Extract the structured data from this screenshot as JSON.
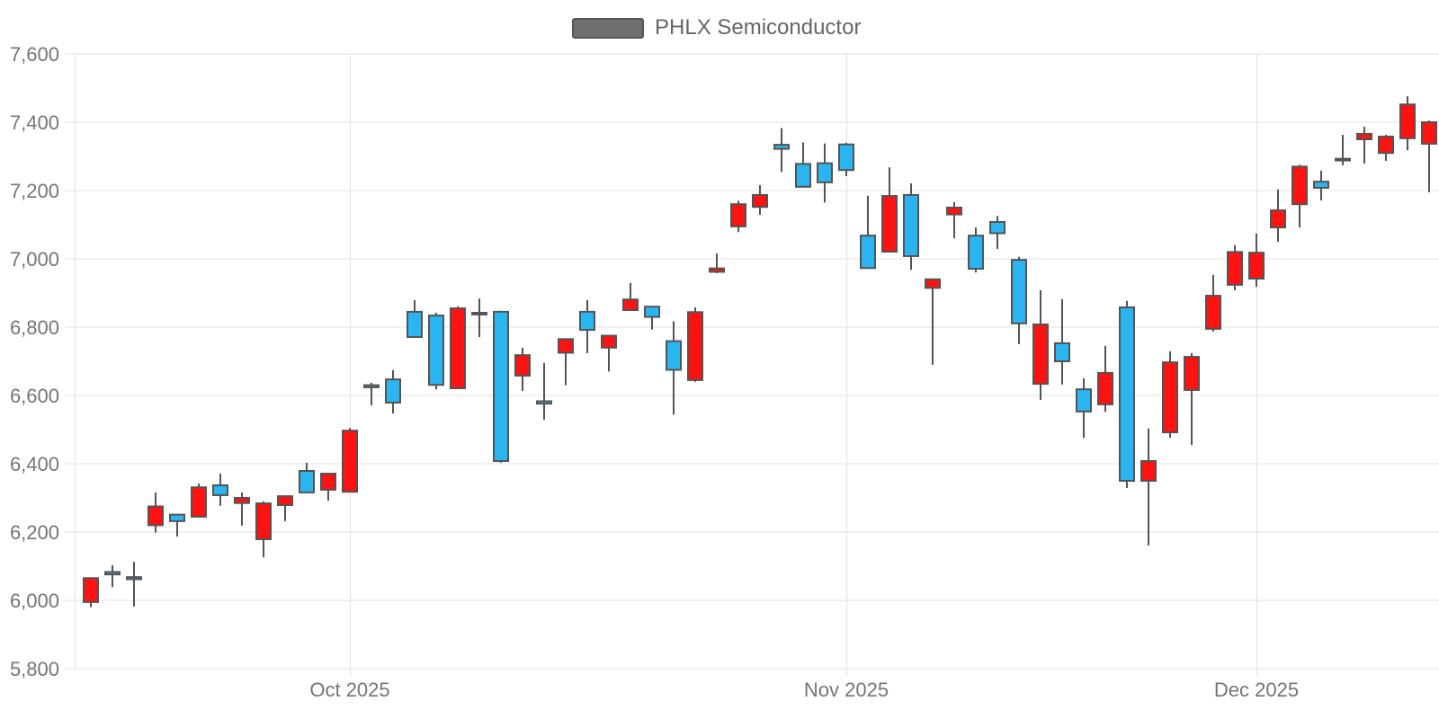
{
  "legend": {
    "label": "PHLX Semiconductor",
    "marker_color": "#6f6f6f",
    "marker_border_color": "#565656"
  },
  "chart_data": {
    "type": "candlestick",
    "title": "PHLX Semiconductor",
    "series_name": "PHLX Semiconductor",
    "candle_format": [
      "open",
      "close",
      "low",
      "high"
    ],
    "y_axis": {
      "min": 5800,
      "max": 7600,
      "step": 200,
      "tick_labels": [
        "7,600",
        "7,400",
        "7,200",
        "7,000",
        "6,800",
        "6,600",
        "6,400",
        "6,200",
        "6,000",
        "5,800"
      ],
      "grid": true
    },
    "x_axis": {
      "tick_labels": [
        "Oct 2025",
        "Nov 2025",
        "Dec 2025"
      ],
      "tick_candle_indices": [
        12,
        35,
        54
      ],
      "grid": true
    },
    "legend_position": "top-center",
    "colors": {
      "up": "#2ab5f0",
      "down": "#fe1212",
      "candle_border": "#545454",
      "wick": "#545454",
      "grid_line": "#e0e0e0",
      "axis_text": "#757575"
    },
    "candles": [
      [
        6065,
        5995,
        5980,
        6068
      ],
      [
        6076,
        6083,
        6039,
        6103
      ],
      [
        6062,
        6068,
        5982,
        6113
      ],
      [
        6275,
        6220,
        6198,
        6316
      ],
      [
        6232,
        6251,
        6187,
        6253
      ],
      [
        6331,
        6245,
        6243,
        6342
      ],
      [
        6308,
        6337,
        6277,
        6371
      ],
      [
        6300,
        6285,
        6219,
        6316
      ],
      [
        6284,
        6179,
        6126,
        6290
      ],
      [
        6305,
        6279,
        6232,
        6307
      ],
      [
        6316,
        6379,
        6314,
        6403
      ],
      [
        6371,
        6324,
        6292,
        6373
      ],
      [
        6497,
        6318,
        6316,
        6505
      ],
      [
        6624,
        6630,
        6571,
        6637
      ],
      [
        6579,
        6647,
        6547,
        6674
      ],
      [
        6771,
        6845,
        6769,
        6879
      ],
      [
        6631,
        6834,
        6618,
        6842
      ],
      [
        6855,
        6621,
        6619,
        6861
      ],
      [
        6837,
        6842,
        6771,
        6884
      ],
      [
        6408,
        6845,
        6403,
        6848
      ],
      [
        6718,
        6658,
        6613,
        6740
      ],
      [
        6576,
        6583,
        6529,
        6695
      ],
      [
        6765,
        6725,
        6630,
        6767
      ],
      [
        6792,
        6845,
        6724,
        6879
      ],
      [
        6775,
        6740,
        6670,
        6777
      ],
      [
        6881,
        6850,
        6848,
        6929
      ],
      [
        6830,
        6860,
        6793,
        6862
      ],
      [
        6675,
        6759,
        6544,
        6817
      ],
      [
        6844,
        6645,
        6640,
        6858
      ],
      [
        6972,
        6962,
        6958,
        7016
      ],
      [
        7160,
        7095,
        7078,
        7170
      ],
      [
        7187,
        7152,
        7129,
        7216
      ],
      [
        7322,
        7334,
        7254,
        7383
      ],
      [
        7211,
        7278,
        7209,
        7341
      ],
      [
        7224,
        7280,
        7165,
        7338
      ],
      [
        7260,
        7335,
        7242,
        7340
      ],
      [
        6973,
        7068,
        6971,
        7185
      ],
      [
        7184,
        7021,
        7019,
        7268
      ],
      [
        7008,
        7187,
        6968,
        7221
      ],
      [
        6940,
        6915,
        6690,
        6942
      ],
      [
        7150,
        7130,
        7060,
        7166
      ],
      [
        6971,
        7068,
        6960,
        7092
      ],
      [
        7075,
        7108,
        7029,
        7126
      ],
      [
        6811,
        6997,
        6750,
        7006
      ],
      [
        6808,
        6634,
        6587,
        6908
      ],
      [
        6700,
        6753,
        6632,
        6882
      ],
      [
        6553,
        6618,
        6476,
        6650
      ],
      [
        6666,
        6574,
        6552,
        6745
      ],
      [
        6350,
        6858,
        6329,
        6877
      ],
      [
        6408,
        6350,
        6161,
        6503
      ],
      [
        6697,
        6492,
        6476,
        6729
      ],
      [
        6713,
        6616,
        6455,
        6724
      ],
      [
        6892,
        6795,
        6787,
        6953
      ],
      [
        7020,
        6924,
        6908,
        7040
      ],
      [
        7018,
        6942,
        6918,
        7074
      ],
      [
        7142,
        7092,
        7050,
        7203
      ],
      [
        7270,
        7160,
        7092,
        7276
      ],
      [
        7208,
        7226,
        7171,
        7258
      ],
      [
        7288,
        7293,
        7274,
        7363
      ],
      [
        7366,
        7350,
        7279,
        7387
      ],
      [
        7358,
        7310,
        7287,
        7363
      ],
      [
        7452,
        7353,
        7318,
        7476
      ],
      [
        7400,
        7337,
        7195,
        7405
      ]
    ]
  }
}
